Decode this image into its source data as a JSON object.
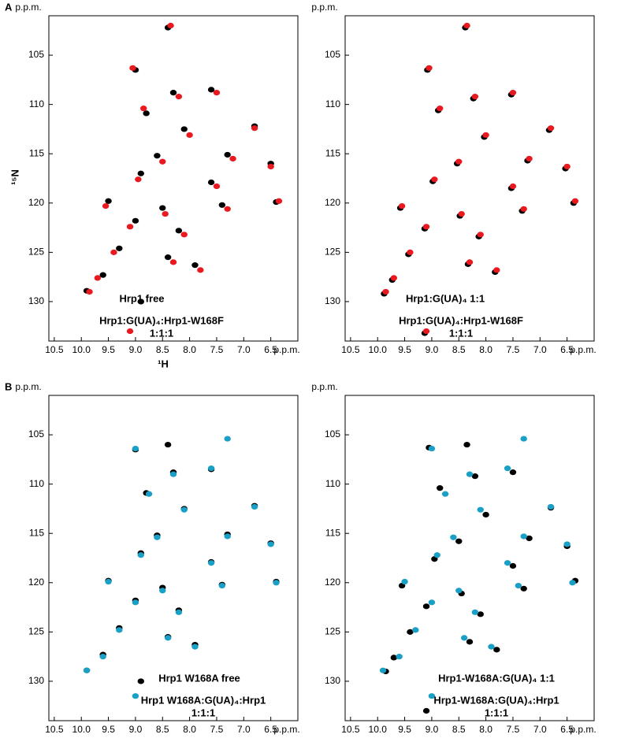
{
  "panel_labels": [
    "A",
    "B"
  ],
  "chart_data": [
    {
      "type": "scatter",
      "xlabel": "¹H",
      "ylabel": "¹⁵N",
      "x_unit": "p.p.m.",
      "y_unit": "p.p.m.",
      "xlim": [
        10.6,
        6.0
      ],
      "ylim": [
        134,
        101
      ],
      "xticks": [
        10.5,
        {
          "value": 10,
          "label": "10.0"
        },
        9.5,
        {
          "value": 9,
          "label": "9.0"
        },
        8.5,
        {
          "value": 8,
          "label": "8.0"
        },
        7.5,
        {
          "value": 7,
          "label": "7.0"
        },
        6.5
      ],
      "yticks": [
        105,
        110,
        115,
        120,
        125,
        130
      ],
      "series": [
        {
          "name": [
            "Hrp1 free"
          ],
          "color": "#000000",
          "x": [
            8.4,
            9.0,
            8.3,
            7.6,
            6.8,
            8.8,
            8.1,
            7.3,
            6.5,
            8.6,
            8.9,
            7.6,
            9.5,
            8.5,
            7.4,
            6.4,
            9.0,
            8.2,
            9.3,
            8.4,
            7.9,
            9.6,
            9.9,
            8.9
          ],
          "values": [
            102.2,
            106.5,
            108.8,
            108.5,
            112.2,
            110.9,
            112.5,
            115.1,
            116.0,
            115.2,
            117.0,
            117.9,
            119.8,
            120.5,
            120.2,
            119.9,
            121.8,
            122.8,
            124.6,
            125.5,
            126.3,
            127.3,
            128.9,
            130.0
          ]
        },
        {
          "name": [
            "Hrp1:G(UA)₄:Hrp1-W168F",
            "1:1:1"
          ],
          "color": "#e8191f",
          "x": [
            8.35,
            9.05,
            8.2,
            7.5,
            6.8,
            8.85,
            8.0,
            7.2,
            6.5,
            8.5,
            8.95,
            7.5,
            9.55,
            8.45,
            7.3,
            6.35,
            9.1,
            8.1,
            9.4,
            8.3,
            7.8,
            9.7,
            9.85,
            9.1
          ],
          "values": [
            102.0,
            106.3,
            109.2,
            108.8,
            112.4,
            110.4,
            113.1,
            115.5,
            116.3,
            115.8,
            117.6,
            118.3,
            120.3,
            121.1,
            120.6,
            119.8,
            122.4,
            123.2,
            125.0,
            126.0,
            126.8,
            127.6,
            129.0,
            133.0
          ]
        }
      ]
    },
    {
      "type": "scatter",
      "x_unit": "p.p.m.",
      "y_unit": "p.p.m.",
      "xlim": [
        10.6,
        6.0
      ],
      "ylim": [
        134,
        101
      ],
      "xticks": [
        10.5,
        {
          "value": 10,
          "label": "10.0"
        },
        9.5,
        {
          "value": 9,
          "label": "9.0"
        },
        8.5,
        {
          "value": 8,
          "label": "8.0"
        },
        7.5,
        {
          "value": 7,
          "label": "7.0"
        },
        6.5
      ],
      "yticks": [
        105,
        110,
        115,
        120,
        125,
        130
      ],
      "series": [
        {
          "name": [
            "Hrp1:G(UA)₄ 1:1"
          ],
          "color": "#000000",
          "x": [
            8.38,
            9.08,
            8.23,
            7.53,
            6.83,
            8.88,
            8.03,
            7.23,
            6.53,
            8.53,
            8.98,
            7.53,
            9.58,
            8.48,
            7.33,
            6.38,
            9.13,
            8.13,
            9.43,
            8.33,
            7.83,
            9.73,
            9.88,
            9.13
          ],
          "values": [
            102.2,
            106.5,
            109.4,
            109.0,
            112.6,
            110.6,
            113.3,
            115.7,
            116.5,
            116.0,
            117.8,
            118.5,
            120.5,
            121.3,
            120.8,
            120.0,
            122.6,
            123.4,
            125.2,
            126.2,
            127.0,
            127.8,
            129.2,
            133.2
          ]
        },
        {
          "name": [
            "Hrp1:G(UA)₄:Hrp1-W168F",
            "1:1:1"
          ],
          "color": "#e8191f",
          "x": [
            8.35,
            9.05,
            8.2,
            7.5,
            6.8,
            8.85,
            8.0,
            7.2,
            6.5,
            8.5,
            8.95,
            7.5,
            9.55,
            8.45,
            7.3,
            6.35,
            9.1,
            8.1,
            9.4,
            8.3,
            7.8,
            9.7,
            9.85,
            9.1
          ],
          "values": [
            102.0,
            106.3,
            109.2,
            108.8,
            112.4,
            110.4,
            113.1,
            115.5,
            116.3,
            115.8,
            117.6,
            118.3,
            120.3,
            121.1,
            120.6,
            119.8,
            122.4,
            123.2,
            125.0,
            126.0,
            126.8,
            127.6,
            129.0,
            133.0
          ]
        }
      ]
    },
    {
      "type": "scatter",
      "x_unit": "p.p.m.",
      "y_unit": "p.p.m.",
      "xlim": [
        10.6,
        6.0
      ],
      "ylim": [
        134,
        101
      ],
      "xticks": [
        10.5,
        {
          "value": 10,
          "label": "10.0"
        },
        9.5,
        {
          "value": 9,
          "label": "9.0"
        },
        8.5,
        {
          "value": 8,
          "label": "8.0"
        },
        7.5,
        {
          "value": 7,
          "label": "7.0"
        },
        6.5
      ],
      "yticks": [
        105,
        110,
        115,
        120,
        125,
        130
      ],
      "series": [
        {
          "name": [
            "Hrp1 W168A free"
          ],
          "color": "#000000",
          "x": [
            8.4,
            9.0,
            8.3,
            7.6,
            6.8,
            8.8,
            8.1,
            7.3,
            6.5,
            8.6,
            8.9,
            7.6,
            9.5,
            8.5,
            7.4,
            6.4,
            9.0,
            8.2,
            9.3,
            8.4,
            7.9,
            9.6,
            9.9,
            8.9
          ],
          "values": [
            106.0,
            106.5,
            108.8,
            108.5,
            112.2,
            110.9,
            112.5,
            115.1,
            116.0,
            115.2,
            117.0,
            117.9,
            119.8,
            120.5,
            120.2,
            119.9,
            121.8,
            122.8,
            124.6,
            125.5,
            126.3,
            127.3,
            128.9,
            130.0
          ]
        },
        {
          "name": [
            "Hrp1 W168A:G(UA)₄:Hrp1",
            "1:1:1"
          ],
          "color": "#1aa0c6",
          "x": [
            7.3,
            9.0,
            8.3,
            7.6,
            6.8,
            8.75,
            8.1,
            7.3,
            6.5,
            8.6,
            8.9,
            7.6,
            9.5,
            8.5,
            7.4,
            6.4,
            9.0,
            8.2,
            9.3,
            8.4,
            7.9,
            9.6,
            9.9,
            9.0
          ],
          "values": [
            105.4,
            106.4,
            109.0,
            108.4,
            112.3,
            111.0,
            112.6,
            115.3,
            116.1,
            115.4,
            117.2,
            118.0,
            119.9,
            120.8,
            120.3,
            120.0,
            122.0,
            123.0,
            124.8,
            125.6,
            126.5,
            127.5,
            128.9,
            131.5
          ]
        }
      ]
    },
    {
      "type": "scatter",
      "x_unit": "p.p.m.",
      "y_unit": "p.p.m.",
      "xlim": [
        10.6,
        6.0
      ],
      "ylim": [
        134,
        101
      ],
      "xticks": [
        10.5,
        {
          "value": 10,
          "label": "10.0"
        },
        9.5,
        {
          "value": 9,
          "label": "9.0"
        },
        8.5,
        {
          "value": 8,
          "label": "8.0"
        },
        7.5,
        {
          "value": 7,
          "label": "7.0"
        },
        6.5
      ],
      "yticks": [
        105,
        110,
        115,
        120,
        125,
        130
      ],
      "series": [
        {
          "name": [
            "Hrp1-W168A:G(UA)₄ 1:1"
          ],
          "color": "#000000",
          "x": [
            8.35,
            9.05,
            8.2,
            7.5,
            6.8,
            8.85,
            8.0,
            7.2,
            6.5,
            8.5,
            8.95,
            7.5,
            9.55,
            8.45,
            7.3,
            6.35,
            9.1,
            8.1,
            9.4,
            8.3,
            7.8,
            9.7,
            9.85,
            9.1
          ],
          "values": [
            106.0,
            106.3,
            109.2,
            108.8,
            112.4,
            110.4,
            113.1,
            115.5,
            116.3,
            115.8,
            117.6,
            118.3,
            120.3,
            121.1,
            120.6,
            119.8,
            122.4,
            123.2,
            125.0,
            126.0,
            126.8,
            127.6,
            129.0,
            133.0
          ]
        },
        {
          "name": [
            "Hrp1-W168A:G(UA)₄:Hrp1",
            "1:1:1"
          ],
          "color": "#1aa0c6",
          "x": [
            7.3,
            9.0,
            8.3,
            7.6,
            6.8,
            8.75,
            8.1,
            7.3,
            6.5,
            8.6,
            8.9,
            7.6,
            9.5,
            8.5,
            7.4,
            6.4,
            9.0,
            8.2,
            9.3,
            8.4,
            7.9,
            9.6,
            9.9,
            9.0
          ],
          "values": [
            105.4,
            106.4,
            109.0,
            108.4,
            112.3,
            111.0,
            112.6,
            115.3,
            116.1,
            115.4,
            117.2,
            118.0,
            119.9,
            120.8,
            120.3,
            120.0,
            122.0,
            123.0,
            124.8,
            125.6,
            126.5,
            127.5,
            128.9,
            131.5
          ]
        }
      ]
    }
  ]
}
